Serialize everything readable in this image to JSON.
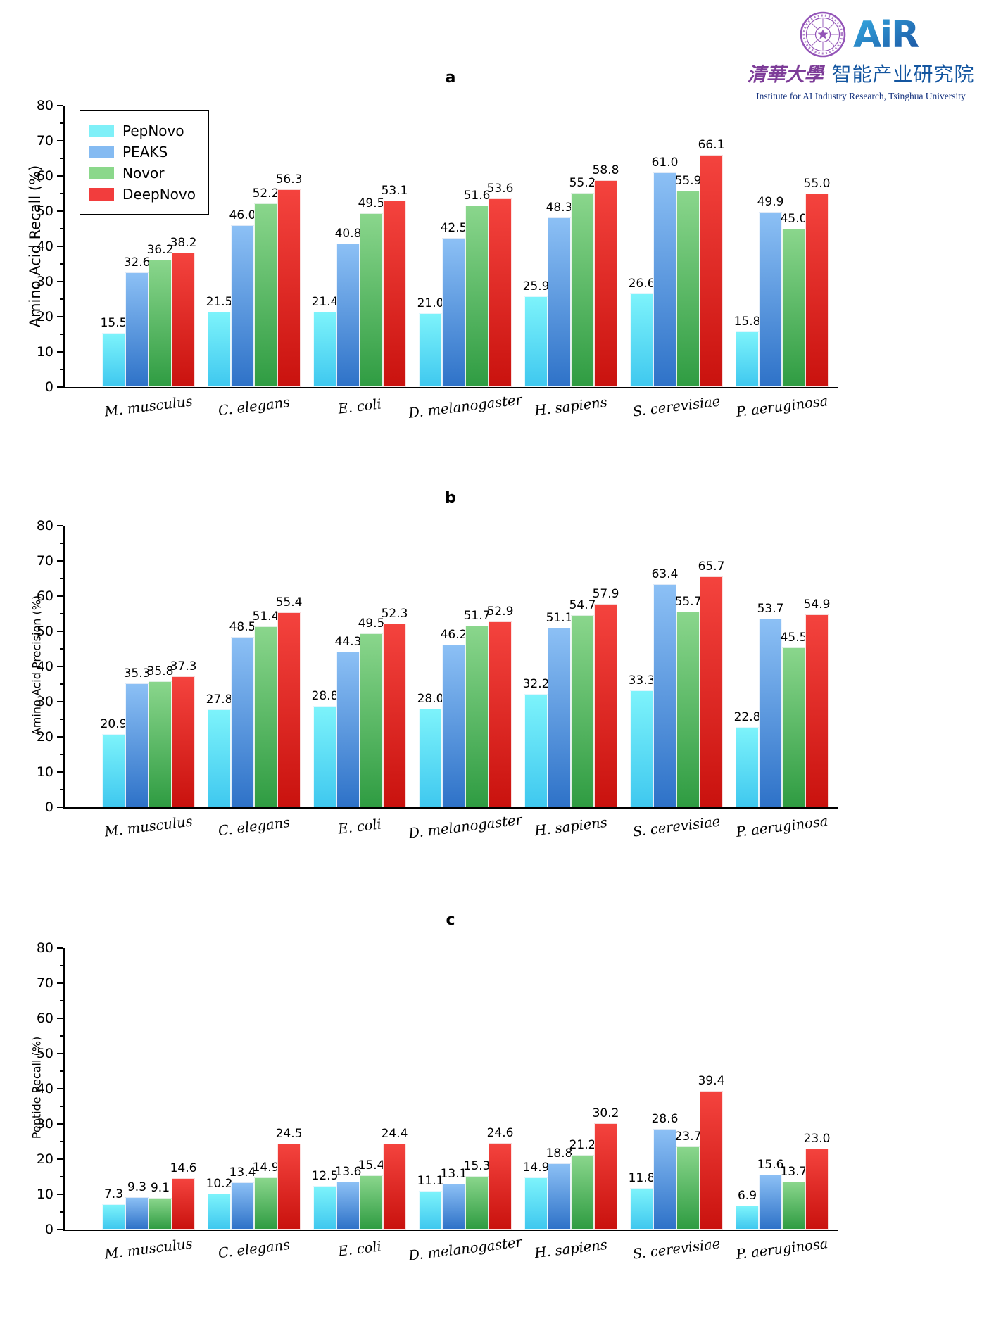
{
  "logo": {
    "air_text": "AiR",
    "cn_calligraphy": "清華大學",
    "cn_institute": "智能产业研究院",
    "en_line": "Institute for AI Industry Research,  Tsinghua University",
    "colors": {
      "seal_purple": "#9455B8",
      "air_grad_light": "#35AEE4",
      "air_grad_dark": "#1A4F9E",
      "cn_purple": "#7D3C98",
      "cn_blue": "#1456A0",
      "en_blue": "#16337F"
    }
  },
  "chart_data": [
    {
      "type": "bar",
      "title": "a",
      "ylabel": "Amino Acid Recall (%)",
      "ylim": [
        0,
        80
      ],
      "ytick_step": 10,
      "grid": false,
      "legend": true,
      "legend_position": "upper-left",
      "categories": [
        "M. musculus",
        "C. elegans",
        "E. coli",
        "D. melanogaster",
        "H. sapiens",
        "S. cerevisiae",
        "P. aeruginosa"
      ],
      "series": [
        {
          "name": "PepNovo",
          "legend_color": "#7FF0F8",
          "color_top": "#7DF3FB",
          "color_bottom": "#3FC8EF",
          "values": [
            15.5,
            21.5,
            21.4,
            21.0,
            25.9,
            26.6,
            15.8
          ]
        },
        {
          "name": "PEAKS",
          "legend_color": "#85BBF2",
          "color_top": "#8CC0F5",
          "color_bottom": "#2E72C8",
          "values": [
            32.6,
            46.0,
            40.8,
            42.5,
            48.3,
            61.0,
            49.9
          ]
        },
        {
          "name": "Novor",
          "legend_color": "#8BD88B",
          "color_top": "#8AD68C",
          "color_bottom": "#2F9C42",
          "values": [
            36.2,
            52.2,
            49.5,
            51.6,
            55.2,
            55.9,
            45.0
          ]
        },
        {
          "name": "DeepNovo",
          "legend_color": "#F23D3D",
          "color_top": "#F4433E",
          "color_bottom": "#C9120E",
          "values": [
            38.2,
            56.3,
            53.1,
            53.6,
            58.8,
            66.1,
            55.0
          ]
        }
      ]
    },
    {
      "type": "bar",
      "title": "b",
      "ylabel": "Amino Acid Precision (%)",
      "ylim": [
        0,
        80
      ],
      "ytick_step": 10,
      "grid": false,
      "legend": false,
      "categories": [
        "M. musculus",
        "C. elegans",
        "E. coli",
        "D. melanogaster",
        "H. sapiens",
        "S. cerevisiae",
        "P. aeruginosa"
      ],
      "series": [
        {
          "name": "PepNovo",
          "legend_color": "#7FF0F8",
          "color_top": "#7DF3FB",
          "color_bottom": "#3FC8EF",
          "values": [
            20.9,
            27.8,
            28.8,
            28.0,
            32.2,
            33.3,
            22.8
          ]
        },
        {
          "name": "PEAKS",
          "legend_color": "#85BBF2",
          "color_top": "#8CC0F5",
          "color_bottom": "#2E72C8",
          "values": [
            35.3,
            48.5,
            44.3,
            46.2,
            51.1,
            63.4,
            53.7
          ]
        },
        {
          "name": "Novor",
          "legend_color": "#8BD88B",
          "color_top": "#8AD68C",
          "color_bottom": "#2F9C42",
          "values": [
            35.8,
            51.4,
            49.5,
            51.7,
            54.7,
            55.7,
            45.5
          ]
        },
        {
          "name": "DeepNovo",
          "legend_color": "#F23D3D",
          "color_top": "#F4433E",
          "color_bottom": "#C9120E",
          "values": [
            37.3,
            55.4,
            52.3,
            52.9,
            57.9,
            65.7,
            54.9
          ]
        }
      ]
    },
    {
      "type": "bar",
      "title": "c",
      "ylabel": "Peptide Recall (%)",
      "ylim": [
        0,
        80
      ],
      "ytick_step": 10,
      "grid": false,
      "legend": false,
      "categories": [
        "M. musculus",
        "C. elegans",
        "E. coli",
        "D. melanogaster",
        "H. sapiens",
        "S. cerevisiae",
        "P. aeruginosa"
      ],
      "series": [
        {
          "name": "PepNovo",
          "legend_color": "#7FF0F8",
          "color_top": "#7DF3FB",
          "color_bottom": "#3FC8EF",
          "values": [
            7.3,
            10.2,
            12.5,
            11.1,
            14.9,
            11.8,
            6.9
          ]
        },
        {
          "name": "PEAKS",
          "legend_color": "#85BBF2",
          "color_top": "#8CC0F5",
          "color_bottom": "#2E72C8",
          "values": [
            9.3,
            13.4,
            13.6,
            13.1,
            18.8,
            28.6,
            15.6
          ]
        },
        {
          "name": "Novor",
          "legend_color": "#8BD88B",
          "color_top": "#8AD68C",
          "color_bottom": "#2F9C42",
          "values": [
            9.1,
            14.9,
            15.4,
            15.3,
            21.2,
            23.7,
            13.7
          ]
        },
        {
          "name": "DeepNovo",
          "legend_color": "#F23D3D",
          "color_top": "#F4433E",
          "color_bottom": "#C9120E",
          "values": [
            14.6,
            24.5,
            24.4,
            24.6,
            30.2,
            39.4,
            23.0
          ]
        }
      ]
    }
  ]
}
